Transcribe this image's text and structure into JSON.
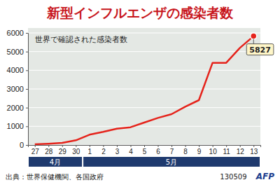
{
  "chart_data": {
    "type": "line",
    "title": "新型インフルエンザの感染者数",
    "subtitle": "世界で確認された感染者数",
    "categories": [
      "27",
      "28",
      "29",
      "30",
      "1",
      "2",
      "3",
      "4",
      "5",
      "6",
      "7",
      "8",
      "9",
      "10",
      "11",
      "12",
      "13"
    ],
    "values": [
      40,
      70,
      110,
      250,
      550,
      700,
      870,
      950,
      1200,
      1450,
      1650,
      2050,
      2400,
      4400,
      4400,
      5200,
      5827
    ],
    "value_labels": [
      null,
      null,
      null,
      null,
      null,
      null,
      null,
      null,
      null,
      null,
      null,
      null,
      null,
      null,
      null,
      null,
      "5827"
    ],
    "month_groups": [
      {
        "label": "4月",
        "count": 4
      },
      {
        "label": "5月",
        "count": 13
      }
    ],
    "color": "#e5231b",
    "ylim": [
      0,
      6000
    ],
    "yticks": [
      0,
      1000,
      2000,
      3000,
      4000,
      5000,
      6000
    ],
    "grid": true,
    "source": "出典：世界保健機関、各国政府",
    "annotations": [
      "130509",
      "AFP"
    ]
  }
}
